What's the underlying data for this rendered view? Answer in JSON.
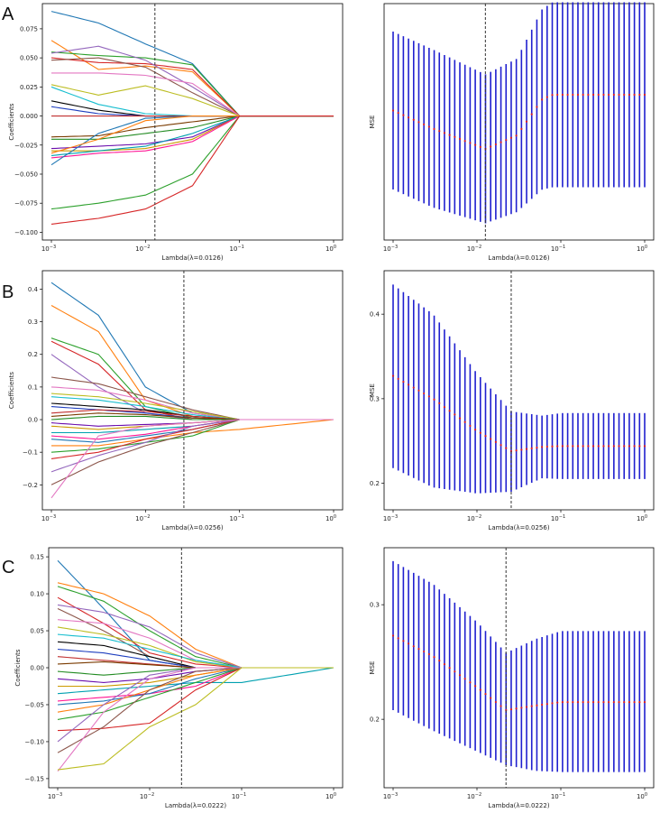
{
  "figure": {
    "panels": [
      {
        "letter": "A"
      },
      {
        "letter": "B"
      },
      {
        "letter": "C"
      }
    ]
  },
  "colors": {
    "cv_line": "#333333",
    "errorbar": "#1f1fcf",
    "mse_point": "#e02020",
    "path_palette": [
      "#1f77b4",
      "#ff7f0e",
      "#2ca02c",
      "#d62728",
      "#9467bd",
      "#8c564b",
      "#e377c2",
      "#bcbd22",
      "#17becf",
      "#000000",
      "#1f3fbf",
      "#c03030",
      "#7a3b00",
      "#228b22",
      "#6a0dad",
      "#cc9900",
      "#00a0b0",
      "#ff1493"
    ]
  },
  "chart_data": [
    {
      "id": "A-coef",
      "type": "line",
      "panel": "A",
      "title": "",
      "xlabel": "Lambda(λ=0.0126)",
      "ylabel": "Coefficients",
      "xscale": "log",
      "xlim": [
        0.001,
        1
      ],
      "ylim": [
        -0.102,
        0.092
      ],
      "xticks": [
        0.001,
        0.01,
        0.1,
        1
      ],
      "xtick_labels": [
        [
          "10",
          "−3"
        ],
        [
          "10",
          "−2"
        ],
        [
          "10",
          "−1"
        ],
        [
          "10",
          "0"
        ]
      ],
      "yticks": [
        -0.1,
        -0.075,
        -0.05,
        -0.025,
        0.0,
        0.025,
        0.05,
        0.075
      ],
      "ytick_labels": [
        "−0.100",
        "−0.075",
        "−0.050",
        "−0.025",
        "0.000",
        "0.025",
        "0.050",
        "0.075"
      ],
      "cv_lambda": 0.0126,
      "x_nodes": [
        0.001,
        0.00316,
        0.01,
        0.0316,
        0.1,
        1
      ],
      "series": [
        {
          "values": [
            0.09,
            0.08,
            0.062,
            0.045,
            0,
            0
          ]
        },
        {
          "values": [
            0.065,
            0.04,
            0.043,
            0.038,
            0,
            0
          ]
        },
        {
          "values": [
            0.055,
            0.052,
            0.05,
            0.044,
            0,
            0
          ]
        },
        {
          "values": [
            0.05,
            0.046,
            0.045,
            0.04,
            0,
            0
          ]
        },
        {
          "values": [
            0.054,
            0.06,
            0.048,
            0.025,
            0,
            0
          ]
        },
        {
          "values": [
            0.048,
            0.05,
            0.042,
            0.02,
            0,
            0
          ]
        },
        {
          "values": [
            0.037,
            0.037,
            0.035,
            0.028,
            0,
            0
          ]
        },
        {
          "values": [
            0.027,
            0.018,
            0.026,
            0.015,
            0,
            0
          ]
        },
        {
          "values": [
            0.025,
            0.01,
            0.002,
            0,
            0,
            0
          ]
        },
        {
          "values": [
            0.013,
            0.005,
            0,
            0,
            0,
            0
          ]
        },
        {
          "values": [
            0.008,
            0.002,
            0,
            0,
            0,
            0
          ]
        },
        {
          "values": [
            0,
            0,
            0,
            0,
            0,
            0
          ]
        },
        {
          "values": [
            -0.018,
            -0.017,
            -0.01,
            -0.005,
            0,
            0
          ]
        },
        {
          "values": [
            -0.02,
            -0.02,
            -0.015,
            -0.01,
            0,
            0
          ]
        },
        {
          "values": [
            -0.028,
            -0.026,
            -0.024,
            -0.018,
            0,
            0
          ]
        },
        {
          "values": [
            -0.03,
            -0.03,
            -0.028,
            -0.02,
            0,
            0
          ]
        },
        {
          "values": [
            -0.034,
            -0.03,
            -0.026,
            -0.015,
            0,
            0
          ]
        },
        {
          "values": [
            -0.036,
            -0.032,
            -0.03,
            -0.022,
            0,
            0
          ]
        },
        {
          "values": [
            -0.042,
            -0.015,
            -0.002,
            0,
            0,
            0
          ]
        },
        {
          "values": [
            -0.032,
            -0.02,
            -0.004,
            0,
            0,
            0
          ]
        },
        {
          "values": [
            -0.08,
            -0.075,
            -0.068,
            -0.05,
            0,
            0
          ]
        },
        {
          "values": [
            -0.093,
            -0.088,
            -0.08,
            -0.06,
            0,
            0
          ]
        }
      ]
    },
    {
      "id": "A-mse",
      "type": "errorbar",
      "panel": "A",
      "title": "",
      "xlabel": "Lambda(λ=0.0126)",
      "ylabel": "MSE",
      "xscale": "log",
      "xlim": [
        0.001,
        1
      ],
      "ylim": [
        0.0,
        1.0
      ],
      "xticks": [
        0.001,
        0.01,
        0.1,
        1
      ],
      "xtick_labels": [
        [
          "10",
          "−3"
        ],
        [
          "10",
          "−2"
        ],
        [
          "10",
          "−1"
        ],
        [
          "10",
          "0"
        ]
      ],
      "yticks": [],
      "ytick_labels": [],
      "cv_lambda": 0.0126,
      "x_nodes": [
        0.001,
        0.003,
        0.0126,
        0.03,
        0.06,
        0.08,
        0.1,
        1
      ],
      "mean": [
        0.55,
        0.47,
        0.38,
        0.44,
        0.6,
        0.62,
        0.62,
        0.62
      ],
      "upper": [
        0.9,
        0.82,
        0.71,
        0.78,
        1.0,
        1.03,
        1.03,
        1.03
      ],
      "lower": [
        0.2,
        0.12,
        0.05,
        0.1,
        0.2,
        0.21,
        0.21,
        0.21
      ]
    },
    {
      "id": "B-coef",
      "type": "line",
      "panel": "B",
      "title": "",
      "xlabel": "Lambda(λ=0.0256)",
      "ylabel": "Coefficients",
      "xscale": "log",
      "xlim": [
        0.001,
        1
      ],
      "ylim": [
        -0.26,
        0.44
      ],
      "xticks": [
        0.001,
        0.01,
        0.1,
        1
      ],
      "xtick_labels": [
        [
          "10",
          "−3"
        ],
        [
          "10",
          "−2"
        ],
        [
          "10",
          "−1"
        ],
        [
          "10",
          "0"
        ]
      ],
      "yticks": [
        -0.2,
        -0.1,
        0.0,
        0.1,
        0.2,
        0.3,
        0.4
      ],
      "ytick_labels": [
        "−0.2",
        "−0.1",
        "0.0",
        "0.1",
        "0.2",
        "0.3",
        "0.4"
      ],
      "cv_lambda": 0.0256,
      "x_nodes": [
        0.001,
        0.00316,
        0.01,
        0.0316,
        0.1,
        1
      ],
      "series": [
        {
          "values": [
            0.42,
            0.32,
            0.1,
            0.02,
            0,
            0
          ]
        },
        {
          "values": [
            0.35,
            0.27,
            0.06,
            0.01,
            0,
            0
          ]
        },
        {
          "values": [
            0.25,
            0.2,
            0.04,
            0.005,
            0,
            0
          ]
        },
        {
          "values": [
            0.24,
            0.17,
            0.03,
            0,
            0,
            0
          ]
        },
        {
          "values": [
            0.2,
            0.1,
            0.02,
            0,
            0,
            0
          ]
        },
        {
          "values": [
            0.13,
            0.11,
            0.07,
            0.03,
            0,
            0
          ]
        },
        {
          "values": [
            0.1,
            0.09,
            0.06,
            0.02,
            0,
            0
          ]
        },
        {
          "values": [
            0.08,
            0.07,
            0.05,
            0.025,
            0,
            0
          ]
        },
        {
          "values": [
            0.07,
            0.06,
            0.04,
            0.015,
            0,
            0
          ]
        },
        {
          "values": [
            0.05,
            0.04,
            0.03,
            0.01,
            0,
            0
          ]
        },
        {
          "values": [
            0.04,
            0.03,
            0.02,
            0.005,
            0,
            0
          ]
        },
        {
          "values": [
            0.02,
            0.03,
            0.025,
            0.01,
            0,
            0
          ]
        },
        {
          "values": [
            0.01,
            0.02,
            0.015,
            0.005,
            0,
            0
          ]
        },
        {
          "values": [
            0,
            0.01,
            0.01,
            0,
            0,
            0
          ]
        },
        {
          "values": [
            -0.01,
            -0.02,
            -0.015,
            -0.01,
            0,
            0
          ]
        },
        {
          "values": [
            -0.02,
            -0.03,
            -0.02,
            -0.01,
            0,
            0
          ]
        },
        {
          "values": [
            -0.04,
            -0.04,
            -0.03,
            -0.02,
            0,
            0
          ]
        },
        {
          "values": [
            -0.05,
            -0.06,
            -0.045,
            -0.02,
            0,
            0
          ]
        },
        {
          "values": [
            -0.06,
            -0.07,
            -0.05,
            -0.03,
            0,
            0
          ]
        },
        {
          "values": [
            -0.08,
            -0.08,
            -0.06,
            -0.04,
            -0.03,
            0
          ]
        },
        {
          "values": [
            -0.1,
            -0.09,
            -0.07,
            -0.05,
            0,
            0
          ]
        },
        {
          "values": [
            -0.12,
            -0.1,
            -0.06,
            -0.03,
            0,
            0
          ]
        },
        {
          "values": [
            -0.16,
            -0.11,
            -0.07,
            -0.02,
            0,
            0
          ]
        },
        {
          "values": [
            -0.2,
            -0.13,
            -0.08,
            -0.04,
            0,
            0
          ]
        },
        {
          "values": [
            -0.24,
            -0.05,
            -0.02,
            -0.01,
            0,
            0
          ]
        }
      ]
    },
    {
      "id": "B-mse",
      "type": "errorbar",
      "panel": "B",
      "title": "",
      "xlabel": "Lambda(λ=0.0256)",
      "ylabel": "MSE",
      "xscale": "log",
      "xlim": [
        0.001,
        1
      ],
      "ylim": [
        0.175,
        0.445
      ],
      "xticks": [
        0.001,
        0.01,
        0.1,
        1
      ],
      "xtick_labels": [
        [
          "10",
          "−3"
        ],
        [
          "10",
          "−2"
        ],
        [
          "10",
          "−1"
        ],
        [
          "10",
          "0"
        ]
      ],
      "yticks": [
        0.2,
        0.3,
        0.4
      ],
      "ytick_labels": [
        "0.2",
        "0.3",
        "0.4"
      ],
      "cv_lambda": 0.0256,
      "x_nodes": [
        0.001,
        0.003,
        0.01,
        0.0256,
        0.06,
        0.1,
        1
      ],
      "mean": [
        0.327,
        0.3,
        0.262,
        0.238,
        0.243,
        0.244,
        0.244
      ],
      "upper": [
        0.435,
        0.4,
        0.33,
        0.285,
        0.28,
        0.283,
        0.283
      ],
      "lower": [
        0.218,
        0.195,
        0.188,
        0.19,
        0.206,
        0.205,
        0.205
      ]
    },
    {
      "id": "C-coef",
      "type": "line",
      "panel": "C",
      "title": "",
      "xlabel": "Lambda(λ=0.0222)",
      "ylabel": "Coefficients",
      "xscale": "log",
      "xlim": [
        0.001,
        1
      ],
      "ylim": [
        -0.155,
        0.155
      ],
      "xticks": [
        0.001,
        0.01,
        0.1,
        1
      ],
      "xtick_labels": [
        [
          "10",
          "−3"
        ],
        [
          "10",
          "−2"
        ],
        [
          "10",
          "−1"
        ],
        [
          "10",
          "0"
        ]
      ],
      "yticks": [
        -0.15,
        -0.1,
        -0.05,
        0.0,
        0.05,
        0.1,
        0.15
      ],
      "ytick_labels": [
        "−0.15",
        "−0.10",
        "−0.05",
        "0.00",
        "0.05",
        "0.10",
        "0.15"
      ],
      "cv_lambda": 0.0222,
      "x_nodes": [
        0.001,
        0.00316,
        0.01,
        0.0316,
        0.1,
        1
      ],
      "series": [
        {
          "values": [
            0.145,
            0.08,
            0.01,
            0,
            0,
            0
          ]
        },
        {
          "values": [
            0.115,
            0.1,
            0.07,
            0.025,
            0,
            0
          ]
        },
        {
          "values": [
            0.11,
            0.09,
            0.05,
            0.015,
            0,
            0
          ]
        },
        {
          "values": [
            0.095,
            0.06,
            0.02,
            0.005,
            0,
            0
          ]
        },
        {
          "values": [
            0.085,
            0.075,
            0.055,
            0.02,
            0,
            0
          ]
        },
        {
          "values": [
            0.08,
            0.05,
            0.015,
            0,
            0,
            0
          ]
        },
        {
          "values": [
            0.065,
            0.06,
            0.04,
            0.01,
            0,
            0
          ]
        },
        {
          "values": [
            0.055,
            0.045,
            0.03,
            0.008,
            0,
            0
          ]
        },
        {
          "values": [
            0.045,
            0.04,
            0.025,
            0.01,
            0,
            0
          ]
        },
        {
          "values": [
            0.035,
            0.03,
            0.015,
            0,
            0,
            0
          ]
        },
        {
          "values": [
            0.025,
            0.02,
            0.01,
            0,
            0,
            0
          ]
        },
        {
          "values": [
            0.015,
            0.01,
            0.005,
            0,
            0,
            0
          ]
        },
        {
          "values": [
            0.005,
            0.008,
            0.004,
            0,
            0,
            0
          ]
        },
        {
          "values": [
            -0.005,
            -0.01,
            -0.005,
            0,
            0,
            0
          ]
        },
        {
          "values": [
            -0.015,
            -0.02,
            -0.015,
            -0.005,
            0,
            0
          ]
        },
        {
          "values": [
            -0.025,
            -0.025,
            -0.02,
            -0.01,
            0,
            0
          ]
        },
        {
          "values": [
            -0.035,
            -0.03,
            -0.025,
            -0.02,
            -0.02,
            0
          ]
        },
        {
          "values": [
            -0.045,
            -0.04,
            -0.035,
            -0.025,
            0,
            0
          ]
        },
        {
          "values": [
            -0.05,
            -0.045,
            -0.035,
            -0.015,
            0,
            0
          ]
        },
        {
          "values": [
            -0.06,
            -0.05,
            -0.03,
            -0.01,
            0,
            0
          ]
        },
        {
          "values": [
            -0.07,
            -0.06,
            -0.04,
            -0.02,
            0,
            0
          ]
        },
        {
          "values": [
            -0.085,
            -0.082,
            -0.075,
            -0.03,
            0,
            0
          ]
        },
        {
          "values": [
            -0.1,
            -0.05,
            -0.01,
            0,
            0,
            0
          ]
        },
        {
          "values": [
            -0.115,
            -0.08,
            -0.03,
            -0.005,
            0,
            0
          ]
        },
        {
          "values": [
            -0.14,
            -0.06,
            -0.015,
            0,
            0,
            0
          ]
        },
        {
          "values": [
            -0.138,
            -0.13,
            -0.08,
            -0.05,
            0,
            0
          ]
        }
      ]
    },
    {
      "id": "C-mse",
      "type": "errorbar",
      "panel": "C",
      "title": "",
      "xlabel": "Lambda(λ=0.0222)",
      "ylabel": "MSE",
      "xscale": "log",
      "xlim": [
        0.001,
        1
      ],
      "ylim": [
        0.145,
        0.345
      ],
      "xticks": [
        0.001,
        0.01,
        0.1,
        1
      ],
      "xtick_labels": [
        [
          "10",
          "−3"
        ],
        [
          "10",
          "−2"
        ],
        [
          "10",
          "−1"
        ],
        [
          "10",
          "0"
        ]
      ],
      "yticks": [
        0.2,
        0.3
      ],
      "ytick_labels": [
        "0.2",
        "0.3"
      ],
      "cv_lambda": 0.0222,
      "x_nodes": [
        0.001,
        0.003,
        0.01,
        0.0222,
        0.05,
        0.1,
        1
      ],
      "mean": [
        0.273,
        0.255,
        0.228,
        0.208,
        0.212,
        0.215,
        0.215
      ],
      "upper": [
        0.338,
        0.318,
        0.285,
        0.258,
        0.27,
        0.277,
        0.277
      ],
      "lower": [
        0.208,
        0.19,
        0.172,
        0.16,
        0.155,
        0.154,
        0.154
      ]
    }
  ]
}
